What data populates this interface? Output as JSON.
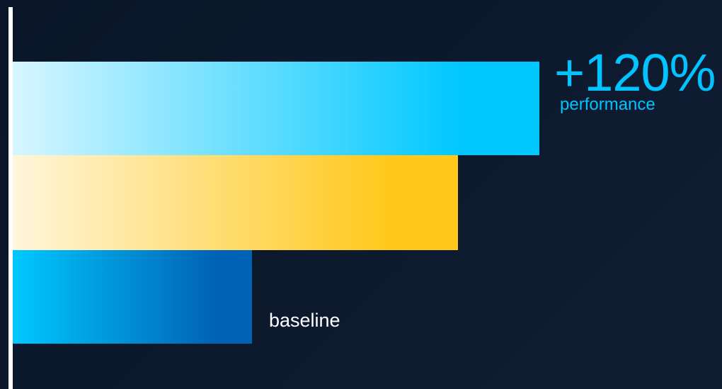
{
  "chart_data": {
    "type": "bar",
    "orientation": "horizontal",
    "categories": [
      "",
      "",
      "baseline"
    ],
    "values": [
      220,
      186,
      100
    ],
    "colors": [
      {
        "start": "#d6f6ff",
        "end": "#00c8ff"
      },
      {
        "start": "#fff6dc",
        "end": "#ffc81a"
      },
      {
        "start": "#00c8ff",
        "end": "#0062b4"
      }
    ],
    "xlim": [
      0,
      300
    ],
    "grid": false,
    "annotations": [
      {
        "text": "+120%",
        "color": "#00c3ff"
      },
      {
        "text": "performance",
        "color": "#00c3ff"
      }
    ]
  },
  "colors": {
    "background": "#0b1628",
    "axis": "#ffffff",
    "baseline_label": "#ffffff"
  }
}
